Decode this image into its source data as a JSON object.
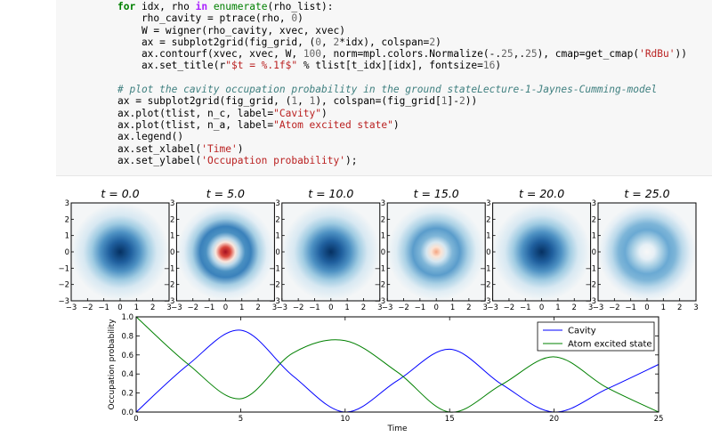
{
  "code_lines": [
    [
      {
        "c": "kw",
        "t": "for"
      },
      {
        "t": " idx, rho "
      },
      {
        "c": "kw2",
        "t": "in"
      },
      {
        "t": " "
      },
      {
        "c": "bi",
        "t": "enumerate"
      },
      {
        "t": "(rho_list):"
      }
    ],
    [
      {
        "t": "    rho_cavity = ptrace(rho, "
      },
      {
        "c": "num",
        "t": "0"
      },
      {
        "t": ")"
      }
    ],
    [
      {
        "t": "    W = wigner(rho_cavity, xvec, xvec)"
      }
    ],
    [
      {
        "t": "    ax = subplot2grid(fig_grid, ("
      },
      {
        "c": "num",
        "t": "0"
      },
      {
        "t": ", "
      },
      {
        "c": "num",
        "t": "2"
      },
      {
        "t": "*idx), colspan="
      },
      {
        "c": "num",
        "t": "2"
      },
      {
        "t": ")"
      }
    ],
    [
      {
        "t": "    ax.contourf(xvec, xvec, W, "
      },
      {
        "c": "num",
        "t": "100"
      },
      {
        "t": ", norm=mpl.colors.Normalize(-."
      },
      {
        "c": "num",
        "t": "25"
      },
      {
        "t": ",."
      },
      {
        "c": "num",
        "t": "25"
      },
      {
        "t": "), cmap=get_cmap("
      },
      {
        "c": "str",
        "t": "'RdBu'"
      },
      {
        "t": "))"
      }
    ],
    [
      {
        "t": "    ax.set_title(r"
      },
      {
        "c": "str",
        "t": "\"$t = %.1f$\""
      },
      {
        "t": " % tlist[t_idx][idx], fontsize="
      },
      {
        "c": "num",
        "t": "16"
      },
      {
        "t": ")"
      }
    ],
    [
      {
        "t": ""
      }
    ],
    [
      {
        "c": "cm",
        "t": "# plot the cavity occupation probability in the ground stateLecture-1-Jaynes-Cumming-model"
      }
    ],
    [
      {
        "t": "ax = subplot2grid(fig_grid, ("
      },
      {
        "c": "num",
        "t": "1"
      },
      {
        "t": ", "
      },
      {
        "c": "num",
        "t": "1"
      },
      {
        "t": "), colspan=(fig_grid["
      },
      {
        "c": "num",
        "t": "1"
      },
      {
        "t": "]-"
      },
      {
        "c": "num",
        "t": "2"
      },
      {
        "t": "))"
      }
    ],
    [
      {
        "t": "ax.plot(tlist, n_c, label="
      },
      {
        "c": "str",
        "t": "\"Cavity\""
      },
      {
        "t": ")"
      }
    ],
    [
      {
        "t": "ax.plot(tlist, n_a, label="
      },
      {
        "c": "str",
        "t": "\"Atom excited state\""
      },
      {
        "t": ")"
      }
    ],
    [
      {
        "t": "ax.legend()"
      }
    ],
    [
      {
        "t": "ax.set_xlabel("
      },
      {
        "c": "str",
        "t": "'Time'"
      },
      {
        "t": ")"
      }
    ],
    [
      {
        "t": "ax.set_ylabel("
      },
      {
        "c": "str",
        "t": "'Occupation probability'"
      },
      {
        "t": ");"
      }
    ]
  ],
  "chart_data": [
    {
      "type": "heatmap",
      "description": "Wigner function snapshots of the cavity state",
      "x_ticks": [
        "−3",
        "−2",
        "−1",
        "0",
        "1",
        "2",
        "3"
      ],
      "y_ticks": [
        "−3",
        "−2",
        "−1",
        "0",
        "1",
        "2",
        "3"
      ],
      "xlim": [
        -3,
        3
      ],
      "ylim": [
        -3,
        3
      ],
      "colormap": "RdBu",
      "norm": [
        -0.25,
        0.25
      ],
      "panels": [
        {
          "title": "t = 0.0",
          "t": 0.0,
          "pattern": "gaussian"
        },
        {
          "title": "t = 5.0",
          "t": 5.0,
          "pattern": "ring-negative-center"
        },
        {
          "title": "t = 10.0",
          "t": 10.0,
          "pattern": "gaussian"
        },
        {
          "title": "t = 15.0",
          "t": 15.0,
          "pattern": "ring-weak-negative-center"
        },
        {
          "title": "t = 20.0",
          "t": 20.0,
          "pattern": "gaussian"
        },
        {
          "title": "t = 25.0",
          "t": 25.0,
          "pattern": "ring"
        }
      ]
    },
    {
      "type": "line",
      "xlabel": "Time",
      "ylabel": "Occupation probability",
      "xlim": [
        0,
        25
      ],
      "ylim": [
        0,
        1.0
      ],
      "x_ticks": [
        0,
        5,
        10,
        15,
        20,
        25
      ],
      "y_ticks": [
        "0.0",
        "0.2",
        "0.4",
        "0.6",
        "0.8",
        "1.0"
      ],
      "legend_position": "top-right",
      "x": [
        0,
        2.5,
        5,
        7.5,
        10,
        12.5,
        15,
        17.5,
        20,
        22.5,
        25
      ],
      "series": [
        {
          "name": "Cavity",
          "color": "#0000ff",
          "values": [
            0.0,
            0.5,
            0.86,
            0.38,
            0.0,
            0.33,
            0.66,
            0.29,
            0.0,
            0.24,
            0.5
          ]
        },
        {
          "name": "Atom excited state",
          "color": "#008000",
          "values": [
            1.0,
            0.5,
            0.14,
            0.62,
            0.75,
            0.42,
            0.0,
            0.29,
            0.58,
            0.26,
            0.0
          ]
        }
      ]
    }
  ]
}
